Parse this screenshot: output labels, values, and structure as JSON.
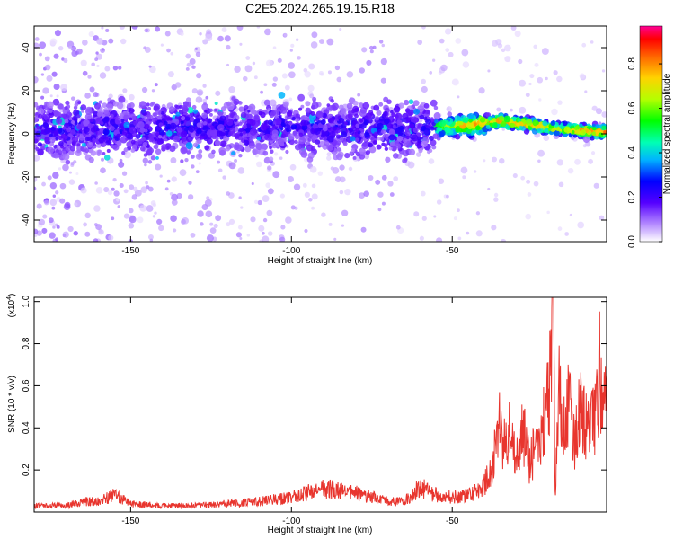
{
  "title": "C2E5.2024.265.19.15.R18",
  "chart_data": [
    {
      "type": "heatmap",
      "xlabel": "Height of straight line (km)",
      "ylabel": "Frequency (Hz)",
      "xlim": [
        -180,
        -2
      ],
      "ylim": [
        -50,
        50
      ],
      "x_ticks": [
        -150,
        -100,
        -50
      ],
      "y_ticks": [
        -40,
        -20,
        0,
        20,
        40
      ],
      "grid": false,
      "colorbar": {
        "label": "Normalized spectral amplitude",
        "range": [
          0,
          0.97
        ],
        "ticks": [
          "0.0",
          "0.2",
          "0.4",
          "0.6",
          "0.8"
        ],
        "colormap": "rainbow"
      },
      "ridge": {
        "description_free_points": [
          {
            "x": -170,
            "y": 2,
            "amp": 0.15
          },
          {
            "x": -150,
            "y": 2,
            "amp": 0.15
          },
          {
            "x": -130,
            "y": 3,
            "amp": 0.18
          },
          {
            "x": -110,
            "y": 3,
            "amp": 0.22
          },
          {
            "x": -90,
            "y": 3,
            "amp": 0.25
          },
          {
            "x": -70,
            "y": 2,
            "amp": 0.28
          },
          {
            "x": -55,
            "y": 3,
            "amp": 0.55
          },
          {
            "x": -45,
            "y": 4,
            "amp": 0.8
          },
          {
            "x": -35,
            "y": 6,
            "amp": 0.85
          },
          {
            "x": -25,
            "y": 4,
            "amp": 0.8
          },
          {
            "x": -15,
            "y": 2,
            "amp": 0.7
          },
          {
            "x": -5,
            "y": 1,
            "amp": 0.9
          }
        ]
      }
    },
    {
      "type": "line",
      "xlabel": "Height of straight line (km)",
      "ylabel": "SNR (10 * v/v)",
      "y_multiplier": "(x10",
      "y_multiplier_exp": "4",
      "y_multiplier_close": ")",
      "xlim": [
        -180,
        -2
      ],
      "ylim": [
        0,
        1.02
      ],
      "x_ticks": [
        -150,
        -100,
        -50
      ],
      "y_ticks": [
        "0.2",
        "0.4",
        "0.6",
        "0.8",
        "1.0"
      ],
      "grid": false,
      "series": [
        {
          "color": "#e8352e",
          "points": [
            [
              -180,
              0.03
            ],
            [
              -170,
              0.03
            ],
            [
              -165,
              0.05
            ],
            [
              -160,
              0.05
            ],
            [
              -155,
              0.08
            ],
            [
              -150,
              0.04
            ],
            [
              -140,
              0.03
            ],
            [
              -130,
              0.03
            ],
            [
              -120,
              0.04
            ],
            [
              -110,
              0.05
            ],
            [
              -100,
              0.07
            ],
            [
              -95,
              0.09
            ],
            [
              -90,
              0.11
            ],
            [
              -85,
              0.1
            ],
            [
              -80,
              0.09
            ],
            [
              -75,
              0.07
            ],
            [
              -70,
              0.05
            ],
            [
              -65,
              0.05
            ],
            [
              -62,
              0.09
            ],
            [
              -60,
              0.13
            ],
            [
              -58,
              0.1
            ],
            [
              -55,
              0.08
            ],
            [
              -50,
              0.07
            ],
            [
              -45,
              0.08
            ],
            [
              -42,
              0.1
            ],
            [
              -40,
              0.13
            ],
            [
              -38,
              0.2
            ],
            [
              -36,
              0.35
            ],
            [
              -35,
              0.45
            ],
            [
              -34,
              0.3
            ],
            [
              -32,
              0.38
            ],
            [
              -30,
              0.25
            ],
            [
              -28,
              0.4
            ],
            [
              -26,
              0.22
            ],
            [
              -24,
              0.32
            ],
            [
              -22,
              0.4
            ],
            [
              -20,
              0.55
            ],
            [
              -19,
              0.85
            ],
            [
              -18.5,
              1.01
            ],
            [
              -18,
              0.05
            ],
            [
              -17,
              0.6
            ],
            [
              -16,
              0.45
            ],
            [
              -14,
              0.55
            ],
            [
              -12,
              0.35
            ],
            [
              -10,
              0.48
            ],
            [
              -8,
              0.4
            ],
            [
              -6,
              0.45
            ],
            [
              -4,
              0.7
            ],
            [
              -3,
              0.5
            ],
            [
              -2,
              0.47
            ]
          ]
        }
      ]
    }
  ]
}
